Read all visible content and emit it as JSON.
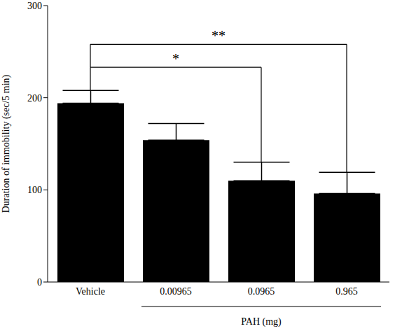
{
  "chart_data": {
    "type": "bar",
    "ylabel": "Duration of immobility (sec/5 min)",
    "categories": [
      "Vehicle",
      "0.00965",
      "0.0965",
      "0.965"
    ],
    "values": [
      194,
      154,
      110,
      96
    ],
    "errors": [
      14,
      18,
      20,
      23
    ],
    "color": "#000000",
    "ylim": [
      0,
      300
    ],
    "yticks": [
      0,
      100,
      200,
      300
    ],
    "grid": false,
    "x_group": {
      "label": "PAH (mg)",
      "categories": [
        "0.00965",
        "0.0965",
        "0.965"
      ]
    },
    "comparisons": [
      {
        "from": "Vehicle",
        "to": "0.0965",
        "label": "*"
      },
      {
        "from": "Vehicle",
        "to": "0.965",
        "label": "**"
      }
    ]
  }
}
